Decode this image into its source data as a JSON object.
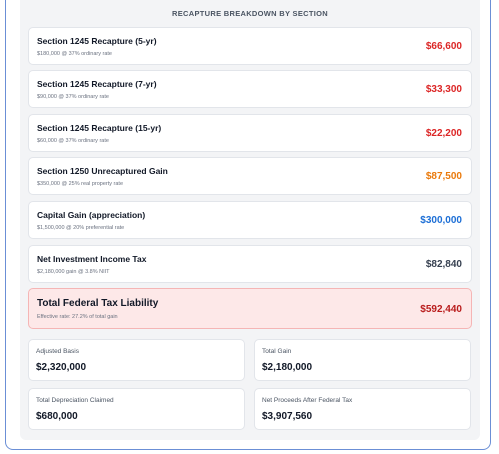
{
  "header": {
    "title": "RECAPTURE BREAKDOWN BY SECTION"
  },
  "rows": [
    {
      "title": "Section 1245 Recapture (5-yr)",
      "detail": "$180,000 @ 37% ordinary rate",
      "amount": "$66,600",
      "color": "#dc2626"
    },
    {
      "title": "Section 1245 Recapture (7-yr)",
      "detail": "$90,000 @ 37% ordinary rate",
      "amount": "$33,300",
      "color": "#dc2626"
    },
    {
      "title": "Section 1245 Recapture (15-yr)",
      "detail": "$60,000 @ 37% ordinary rate",
      "amount": "$22,200",
      "color": "#dc2626"
    },
    {
      "title": "Section 1250 Unrecaptured Gain",
      "detail": "$350,000 @ 25% real property rate",
      "amount": "$87,500",
      "color": "#ea7a0c"
    },
    {
      "title": "Capital Gain (appreciation)",
      "detail": "$1,500,000 @ 20% preferential rate",
      "amount": "$300,000",
      "color": "#1d6fd6"
    },
    {
      "title": "Net Investment Income Tax",
      "detail": "$2,180,000 gain @ 3.8% NIIT",
      "amount": "$82,840",
      "color": "#374151"
    }
  ],
  "total": {
    "title": "Total Federal Tax Liability",
    "detail": "Effective rate: 27.2% of total gain",
    "amount": "$592,440",
    "color": "#b91c1c"
  },
  "summary": [
    {
      "label": "Adjusted Basis",
      "value": "$2,320,000"
    },
    {
      "label": "Total Gain",
      "value": "$2,180,000"
    },
    {
      "label": "Total Depreciation Claimed",
      "value": "$680,000"
    },
    {
      "label": "Net Proceeds After Federal Tax",
      "value": "$3,907,560"
    }
  ]
}
